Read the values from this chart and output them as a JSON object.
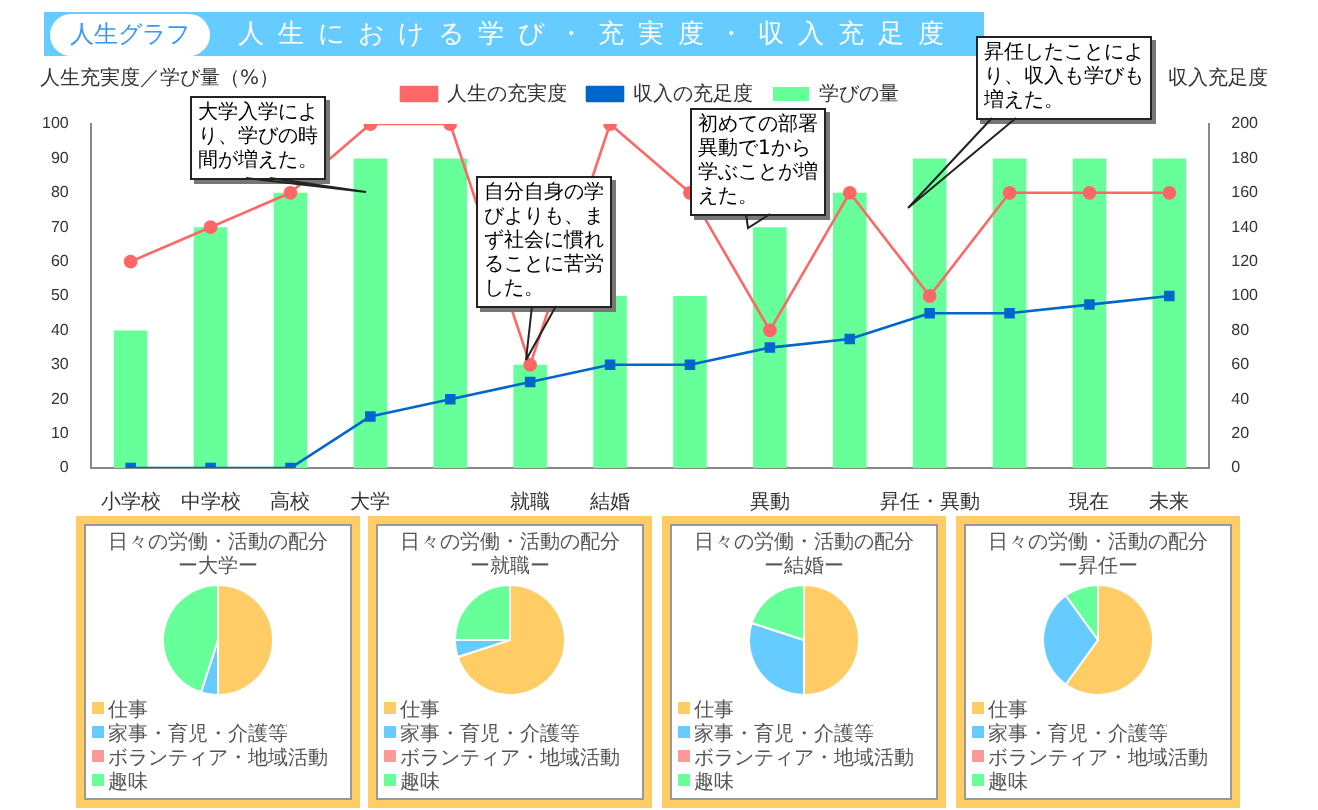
{
  "chart_data": [
    {
      "type": "bar",
      "title": "人生における学び・充実度・収入充足度",
      "subtitle": "人生グラフ",
      "ylabel": "人生充実度／学び量（%）",
      "y2label": "収入充足度",
      "categories": [
        "小学校",
        "中学校",
        "高校",
        "大学",
        null,
        "就職",
        "結婚",
        null,
        "異動",
        null,
        "昇任・異動",
        null,
        "現在",
        "未来"
      ],
      "series": [
        {
          "name": "学びの量",
          "type": "bar",
          "color": "#66ff99",
          "values": [
            40,
            70,
            80,
            90,
            90,
            30,
            50,
            50,
            70,
            80,
            90,
            90,
            90,
            90
          ]
        },
        {
          "name": "人生の充実度",
          "type": "line",
          "color": "#ff6666",
          "marker": "circle",
          "values": [
            60,
            70,
            80,
            100,
            100,
            30,
            100,
            80,
            40,
            80,
            50,
            80,
            80,
            80
          ]
        },
        {
          "name": "収入の充足度",
          "type": "line",
          "color": "#0066cc",
          "marker": "square",
          "axis": "y2",
          "values": [
            0,
            0,
            0,
            30,
            40,
            50,
            60,
            60,
            70,
            75,
            90,
            90,
            95,
            100
          ]
        }
      ],
      "ylim": [
        0,
        100
      ],
      "yticks": [
        0,
        10,
        20,
        30,
        40,
        50,
        60,
        70,
        80,
        90,
        100
      ],
      "y2lim": [
        0,
        200
      ],
      "y2ticks": [
        0,
        20,
        40,
        60,
        80,
        100,
        120,
        140,
        160,
        180,
        200
      ],
      "grid": false,
      "legend": "top",
      "annotations": [
        "大学入学により、学びの時間が増えた。",
        "自分自身の学びよりも、まず社会に慣れることに苦労した。",
        "初めての部署異動で1から学ぶことが増えた。",
        "昇任したことにより、収入も学びも増えた。"
      ]
    },
    {
      "type": "pie",
      "title": "日々の労働・活動の配分",
      "subtitle": "ー大学ー",
      "categories": [
        "仕事",
        "家事・育児・介護等",
        "ボランティア・地域活動",
        "趣味"
      ],
      "values": [
        50,
        5,
        0,
        45
      ],
      "colors": [
        "#ffcc66",
        "#66ccff",
        "#ff9999",
        "#66ff99"
      ],
      "legend": "bottom"
    },
    {
      "type": "pie",
      "title": "日々の労働・活動の配分",
      "subtitle": "ー就職ー",
      "categories": [
        "仕事",
        "家事・育児・介護等",
        "ボランティア・地域活動",
        "趣味"
      ],
      "values": [
        70,
        5,
        0,
        25
      ],
      "colors": [
        "#ffcc66",
        "#66ccff",
        "#ff9999",
        "#66ff99"
      ],
      "legend": "bottom"
    },
    {
      "type": "pie",
      "title": "日々の労働・活動の配分",
      "subtitle": "ー結婚ー",
      "categories": [
        "仕事",
        "家事・育児・介護等",
        "ボランティア・地域活動",
        "趣味"
      ],
      "values": [
        50,
        30,
        0,
        20
      ],
      "colors": [
        "#ffcc66",
        "#66ccff",
        "#ff9999",
        "#66ff99"
      ],
      "legend": "bottom"
    },
    {
      "type": "pie",
      "title": "日々の労働・活動の配分",
      "subtitle": "ー昇任ー",
      "categories": [
        "仕事",
        "家事・育児・介護等",
        "ボランティア・地域活動",
        "趣味"
      ],
      "values": [
        60,
        30,
        0,
        10
      ],
      "colors": [
        "#ffcc66",
        "#66ccff",
        "#ff9999",
        "#66ff99"
      ],
      "legend": "bottom"
    }
  ]
}
